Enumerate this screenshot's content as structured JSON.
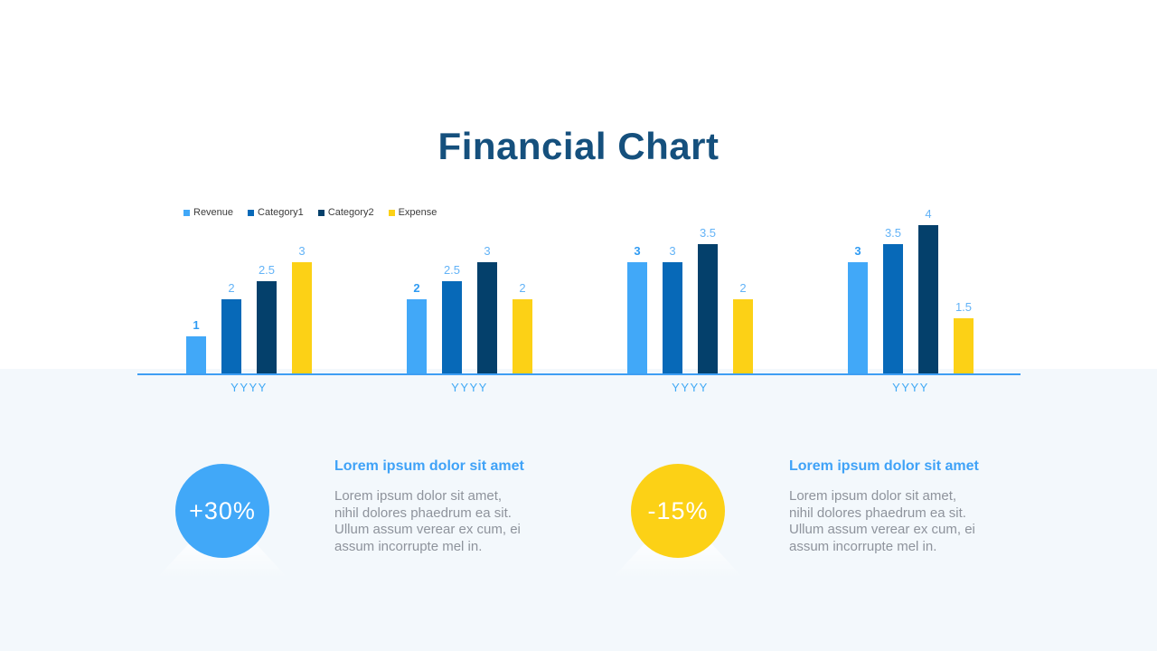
{
  "slide": {
    "title": "Financial Chart"
  },
  "colors": {
    "title_navy": "#15507D",
    "axis_line": "#3E9EF3",
    "panel_bg": "#F3F8FC",
    "category_label": "#41A9F5",
    "data_label_regular": "#63B3F7",
    "data_label_bold": "#2F9BF3",
    "legend_text": "#3C3C3C",
    "heading_blue": "#3FA2F7",
    "body_gray": "#8E939C"
  },
  "chart_data": {
    "type": "bar",
    "title": "Financial Chart",
    "categories": [
      "YYYY",
      "YYYY",
      "YYYY",
      "YYYY"
    ],
    "series": [
      {
        "name": "Revenue",
        "color": "#41A8F8",
        "values": [
          1,
          2,
          3,
          3
        ]
      },
      {
        "name": "Category1",
        "color": "#0769B8",
        "values": [
          2,
          2.5,
          3,
          3.5
        ]
      },
      {
        "name": "Category2",
        "color": "#04406B",
        "values": [
          2.5,
          3,
          3.5,
          4
        ]
      },
      {
        "name": "Expense",
        "color": "#FCD116",
        "values": [
          3,
          2,
          2,
          1.5
        ]
      }
    ],
    "ylim": [
      0,
      4
    ],
    "grid": false,
    "legend_position": "top-left",
    "data_labels": true,
    "xlabel": "",
    "ylabel": ""
  },
  "cards": [
    {
      "badge": "+30%",
      "badge_color": "#41A8F8",
      "heading": "Lorem ipsum dolor sit amet",
      "body": "Lorem ipsum dolor sit amet,\nnihil dolores phaedrum ea sit.\nUllum assum verear ex cum, ei\nassum incorrupte mel in."
    },
    {
      "badge": "-15%",
      "badge_color": "#FCD116",
      "heading": "Lorem ipsum dolor sit amet",
      "body": "Lorem ipsum dolor sit amet,\nnihil dolores phaedrum ea sit.\nUllum assum verear ex cum, ei\nassum incorrupte mel in."
    }
  ]
}
